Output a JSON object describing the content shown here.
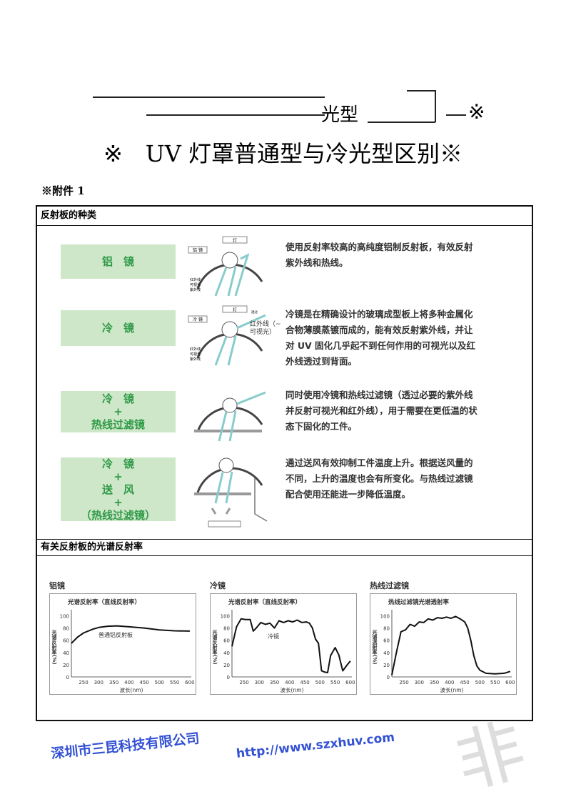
{
  "header": {
    "fragment": "光型",
    "fragment_mark": "※",
    "title": "※　UV 灯罩普通型与冷光型区别※",
    "annex": "※附件 1"
  },
  "section1": {
    "title": "反射板的种类",
    "rows": [
      {
        "label": [
          "铝　镜"
        ],
        "diagram": {
          "lamp": "灯",
          "mirror": "铝 镜",
          "rays": [
            "红外线",
            "可视光",
            "紫外线"
          ]
        },
        "text": "使用反射率较高的高纯度铝制反射板，有效反射紫外线和热线。"
      },
      {
        "label": [
          "冷　镜"
        ],
        "diagram": {
          "lamp": "灯",
          "mirror": "冷 镜",
          "pass": "透过",
          "pass_rays": "红外线（~可视光）",
          "rays": [
            "红外线",
            "可视光",
            "紫外线"
          ]
        },
        "text": "冷镜是在精确设计的玻璃成型板上将多种金属化合物薄膜蒸镀而成的，能有效反射紫外线，并让对 UV 固化几乎起不到任何作用的可视光以及红外线透过到背面。"
      },
      {
        "label": [
          "冷　镜",
          "+",
          "热线过滤镜"
        ],
        "text": "同时使用冷镜和热线过滤镜（透过必要的紫外线并反射可视光和红外线），用于需要在更低温的状态下固化的工件。"
      },
      {
        "label": [
          "冷　镜",
          "+",
          "送　风",
          "+",
          "（热线过滤镜）"
        ],
        "text": "通过送风有效抑制工件温度上升。根据送风量的不同，上升的温度也会有所变化。与热线过滤镜配合使用还能进一步降低温度。"
      }
    ]
  },
  "section2": {
    "title": "有关反射板的光谱反射率"
  },
  "watermark": {
    "company": "深圳市三昆科技有限公司",
    "url": "http://www.szxhuv.com",
    "color": "#1d3fd0"
  },
  "chart_data": [
    {
      "type": "line",
      "label": "铝镜",
      "title": "光谱反射率（直线反射率）",
      "ylabel": "光谱反射率(%)",
      "xlabel": "波长(nm)",
      "xlim": [
        210,
        605
      ],
      "ylim": [
        0,
        110
      ],
      "xticks": [
        250,
        300,
        350,
        400,
        450,
        500,
        550,
        600
      ],
      "yticks": [
        0,
        20,
        40,
        60,
        80,
        100
      ],
      "annotation": "普通铝反射板",
      "x": [
        210,
        230,
        250,
        280,
        300,
        330,
        360,
        400,
        450,
        500,
        550,
        600
      ],
      "y": [
        55,
        65,
        72,
        78,
        81,
        83,
        83.5,
        82,
        80,
        77,
        75.5,
        75
      ]
    },
    {
      "type": "line",
      "label": "冷镜",
      "title": "光谱反射率（直线反射率）",
      "ylabel": "光谱反射率(%)",
      "xlabel": "波长(nm)",
      "xlim": [
        210,
        605
      ],
      "ylim": [
        0,
        110
      ],
      "xticks": [
        250,
        300,
        350,
        400,
        450,
        500,
        550,
        600
      ],
      "yticks": [
        0,
        20,
        40,
        60,
        80,
        100
      ],
      "annotation": "冷镜",
      "x": [
        210,
        225,
        240,
        255,
        270,
        280,
        290,
        305,
        320,
        335,
        350,
        365,
        380,
        395,
        410,
        425,
        440,
        455,
        465,
        475,
        485,
        495,
        505,
        515,
        525,
        535,
        550,
        562,
        575,
        590,
        600
      ],
      "y": [
        50,
        82,
        95,
        94,
        94,
        75,
        80,
        89,
        86,
        88,
        80,
        92,
        89,
        92,
        90,
        93,
        89,
        90,
        88,
        80,
        62,
        55,
        10,
        8,
        7,
        35,
        48,
        36,
        10,
        20,
        26
      ]
    },
    {
      "type": "line",
      "label": "热线过滤镜",
      "title": "热线过滤镜光谱透射率",
      "ylabel": "光谱透射率(%)",
      "xlabel": "波长(nm)",
      "xlim": [
        210,
        605
      ],
      "ylim": [
        0,
        110
      ],
      "xticks": [
        250,
        300,
        350,
        400,
        450,
        500,
        550,
        600
      ],
      "yticks": [
        0,
        20,
        40,
        60,
        80,
        100
      ],
      "x": [
        210,
        225,
        240,
        255,
        270,
        285,
        300,
        315,
        330,
        345,
        360,
        375,
        390,
        405,
        420,
        435,
        450,
        460,
        470,
        480,
        490,
        500,
        520,
        550,
        580,
        600
      ],
      "y": [
        3,
        40,
        74,
        77,
        86,
        83,
        90,
        89,
        95,
        93,
        97,
        96,
        98,
        96,
        99,
        95,
        90,
        80,
        60,
        35,
        18,
        11,
        6,
        5,
        6,
        9
      ]
    }
  ]
}
